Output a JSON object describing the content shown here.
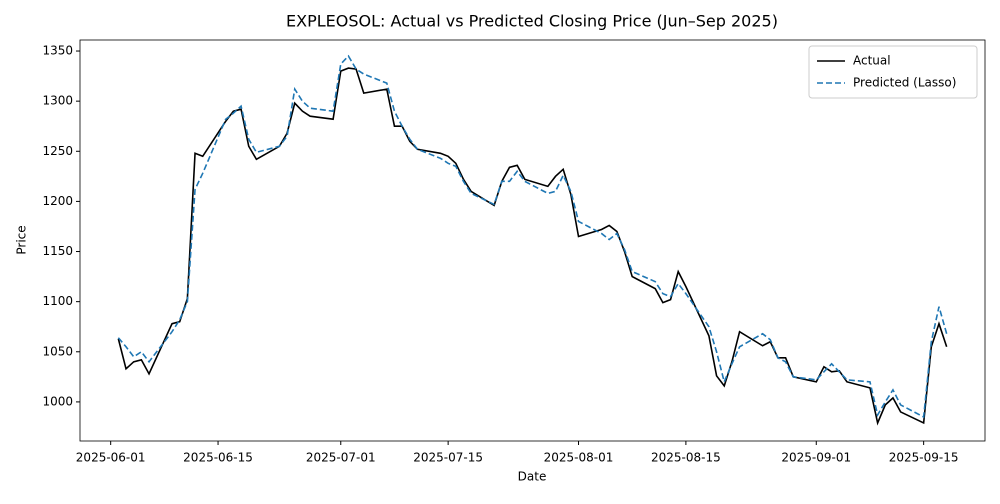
{
  "chart_data": {
    "type": "line",
    "title": "EXPLEOSOL: Actual vs Predicted Closing Price (Jun–Sep 2025)",
    "xlabel": "Date",
    "ylabel": "Price",
    "x": [
      "2025-06-02",
      "2025-06-03",
      "2025-06-04",
      "2025-06-05",
      "2025-06-06",
      "2025-06-09",
      "2025-06-10",
      "2025-06-11",
      "2025-06-12",
      "2025-06-13",
      "2025-06-16",
      "2025-06-17",
      "2025-06-18",
      "2025-06-19",
      "2025-06-20",
      "2025-06-23",
      "2025-06-24",
      "2025-06-25",
      "2025-06-26",
      "2025-06-27",
      "2025-06-30",
      "2025-07-01",
      "2025-07-02",
      "2025-07-03",
      "2025-07-04",
      "2025-07-07",
      "2025-07-08",
      "2025-07-09",
      "2025-07-10",
      "2025-07-11",
      "2025-07-14",
      "2025-07-15",
      "2025-07-16",
      "2025-07-17",
      "2025-07-18",
      "2025-07-21",
      "2025-07-22",
      "2025-07-23",
      "2025-07-24",
      "2025-07-25",
      "2025-07-28",
      "2025-07-29",
      "2025-07-30",
      "2025-07-31",
      "2025-08-01",
      "2025-08-04",
      "2025-08-05",
      "2025-08-06",
      "2025-08-07",
      "2025-08-08",
      "2025-08-11",
      "2025-08-12",
      "2025-08-13",
      "2025-08-14",
      "2025-08-15",
      "2025-08-18",
      "2025-08-19",
      "2025-08-20",
      "2025-08-21",
      "2025-08-22",
      "2025-08-25",
      "2025-08-26",
      "2025-08-27",
      "2025-08-28",
      "2025-08-29",
      "2025-09-01",
      "2025-09-02",
      "2025-09-03",
      "2025-09-04",
      "2025-09-05",
      "2025-09-08",
      "2025-09-09",
      "2025-09-10",
      "2025-09-11",
      "2025-09-12",
      "2025-09-15",
      "2025-09-16",
      "2025-09-17",
      "2025-09-18"
    ],
    "series": [
      {
        "name": "Actual",
        "color": "#000000",
        "dash": "solid",
        "values": [
          1063,
          1033,
          1040,
          1042,
          1028,
          1078,
          1080,
          1103,
          1248,
          1245,
          1280,
          1290,
          1292,
          1255,
          1242,
          1255,
          1268,
          1298,
          1290,
          1285,
          1282,
          1330,
          1333,
          1332,
          1308,
          1312,
          1275,
          1275,
          1260,
          1252,
          1248,
          1245,
          1238,
          1222,
          1210,
          1196,
          1220,
          1234,
          1236,
          1222,
          1215,
          1225,
          1232,
          1207,
          1165,
          1172,
          1176,
          1170,
          1150,
          1125,
          1113,
          1099,
          1102,
          1130,
          1115,
          1066,
          1026,
          1016,
          1040,
          1070,
          1056,
          1060,
          1044,
          1044,
          1025,
          1020,
          1035,
          1030,
          1031,
          1020,
          1014,
          979,
          997,
          1004,
          990,
          979,
          1055,
          1078,
          1055
        ]
      },
      {
        "name": "Predicted (Lasso)",
        "color": "#1f77b4",
        "dash": "dashed",
        "values": [
          1064,
          1055,
          1045,
          1050,
          1040,
          1070,
          1082,
          1100,
          1212,
          1228,
          1282,
          1288,
          1295,
          1262,
          1249,
          1255,
          1265,
          1312,
          1300,
          1293,
          1290,
          1337,
          1345,
          1332,
          1327,
          1318,
          1290,
          1275,
          1262,
          1252,
          1243,
          1238,
          1235,
          1220,
          1208,
          1197,
          1220,
          1220,
          1230,
          1220,
          1208,
          1210,
          1226,
          1210,
          1180,
          1168,
          1162,
          1168,
          1152,
          1130,
          1120,
          1108,
          1105,
          1118,
          1108,
          1075,
          1050,
          1020,
          1038,
          1055,
          1068,
          1062,
          1044,
          1040,
          1025,
          1022,
          1030,
          1038,
          1030,
          1022,
          1020,
          987,
          1000,
          1012,
          997,
          985,
          1060,
          1095,
          1068
        ]
      }
    ],
    "xlim": [
      "2025-05-28",
      "2025-09-23"
    ],
    "xticks": [
      "2025-06-01",
      "2025-06-15",
      "2025-07-01",
      "2025-07-15",
      "2025-08-01",
      "2025-08-15",
      "2025-09-01",
      "2025-09-15"
    ],
    "ylim": [
      961,
      1361
    ],
    "yticks": [
      1000,
      1050,
      1100,
      1150,
      1200,
      1250,
      1300,
      1350
    ],
    "legend": "upper right"
  }
}
